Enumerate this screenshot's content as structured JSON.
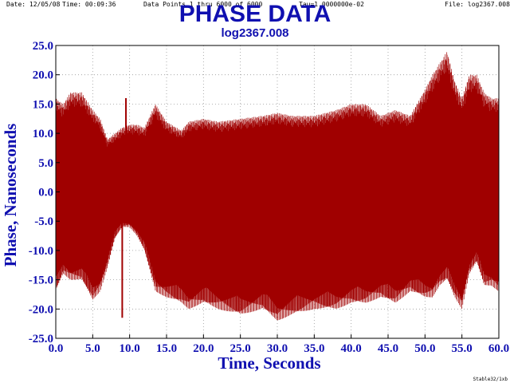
{
  "header": {
    "date": "Date: 12/05/08",
    "time": "Time: 00:09:36",
    "data_points": "Data Points 1 thru 6000 of 6000",
    "tau": "Tau=1.0000000e-02",
    "file": "File: log2367.008"
  },
  "footer": "Stable32/1xb",
  "colors": {
    "title": "#1010b0",
    "trace": "#a00000"
  },
  "chart_data": {
    "type": "line",
    "title": "PHASE DATA",
    "subtitle": "log2367.008",
    "xlabel": "Time,  Seconds",
    "ylabel": "Phase,  Nanoseconds",
    "xlim": [
      0.0,
      60.0
    ],
    "ylim": [
      -25.0,
      25.0
    ],
    "grid": true,
    "x_ticks": [
      "0.0",
      "5.0",
      "10.0",
      "15.0",
      "20.0",
      "25.0",
      "30.0",
      "35.0",
      "40.0",
      "45.0",
      "50.0",
      "55.0",
      "60.0"
    ],
    "y_ticks": [
      "25.0",
      "20.0",
      "15.0",
      "10.0",
      "5.0",
      "0.0",
      "-5.0",
      "-10.0",
      "-15.0",
      "-20.0",
      "-25.0"
    ],
    "series": [
      {
        "values_note_hidden": null,
        "x": [
          0.0,
          1.0,
          2.0,
          3.5,
          5.0,
          6.0,
          7.0,
          8.0,
          9.0,
          10.0,
          11.0,
          12.0,
          13.5,
          15.0,
          17.0,
          18.0,
          20.0,
          22.0,
          25.0,
          28.0,
          30.0,
          32.0,
          35.0,
          38.0,
          40.0,
          42.0,
          44.0,
          46.0,
          48.0,
          50.0,
          51.0,
          52.0,
          53.0,
          54.0,
          55.0,
          56.0,
          57.0,
          58.0,
          59.0,
          60.0
        ],
        "upper": [
          16.0,
          15.0,
          17.0,
          17.0,
          14.0,
          12.5,
          9.0,
          10.0,
          11.0,
          11.5,
          11.5,
          11.0,
          15.0,
          12.0,
          10.5,
          12.0,
          12.5,
          12.0,
          12.5,
          13.0,
          13.5,
          13.0,
          13.0,
          14.0,
          15.0,
          15.0,
          13.0,
          14.0,
          13.0,
          17.5,
          20.0,
          22.0,
          24.0,
          19.0,
          16.0,
          20.0,
          20.0,
          17.0,
          16.0,
          16.0
        ],
        "lower": [
          -17.0,
          -14.0,
          -15.0,
          -15.0,
          -18.5,
          -17.0,
          -13.0,
          -8.0,
          -6.0,
          -6.0,
          -7.5,
          -10.0,
          -17.0,
          -18.0,
          -19.0,
          -20.0,
          -19.0,
          -20.0,
          -21.0,
          -20.0,
          -22.0,
          -21.0,
          -20.0,
          -20.0,
          -19.0,
          -19.0,
          -18.0,
          -19.0,
          -17.0,
          -18.0,
          -18.0,
          -16.0,
          -15.0,
          -18.0,
          -20.0,
          -14.0,
          -12.0,
          -16.0,
          -16.0,
          -17.0
        ],
        "center": [
          -2.0,
          -1.0,
          0.0,
          -1.0,
          -3.0,
          -2.0,
          -1.0,
          1.0,
          3.0,
          3.0,
          2.0,
          1.0,
          -1.0,
          -2.0,
          -3.0,
          -4.0,
          -3.0,
          -3.0,
          -3.0,
          -3.0,
          -4.0,
          -4.0,
          -3.0,
          -3.0,
          -3.0,
          -2.0,
          -2.0,
          -3.0,
          -2.0,
          0.0,
          3.0,
          6.0,
          5.0,
          0.0,
          -3.0,
          2.0,
          4.0,
          0.0,
          -1.0,
          -1.0
        ]
      }
    ],
    "spikes": [
      {
        "x": 9.0,
        "y": -21.5
      },
      {
        "x": 9.5,
        "y": 16.0
      }
    ]
  }
}
